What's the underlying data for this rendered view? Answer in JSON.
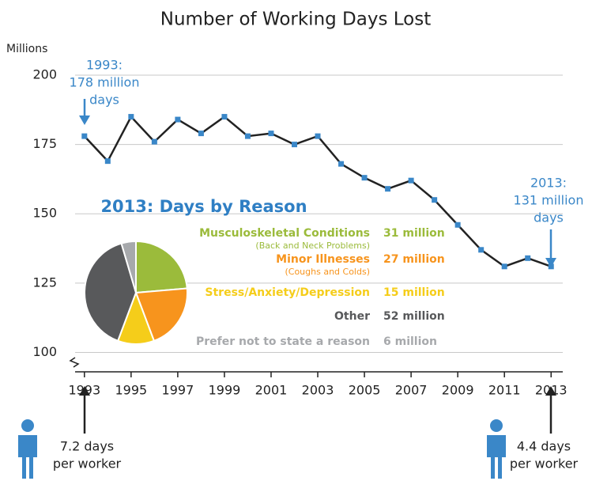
{
  "chart_data": [
    {
      "type": "line",
      "title": "Number of Working Days Lost",
      "y_label": "Millions",
      "x": [
        1993,
        1994,
        1995,
        1996,
        1997,
        1998,
        1999,
        2000,
        2001,
        2002,
        2003,
        2004,
        2005,
        2006,
        2007,
        2008,
        2009,
        2010,
        2011,
        2012,
        2013
      ],
      "values": [
        178,
        169,
        185,
        176,
        184,
        179,
        185,
        178,
        179,
        175,
        178,
        168,
        163,
        159,
        162,
        155,
        146,
        137,
        131,
        134,
        131
      ],
      "color": "#222222",
      "marker_color": "#3a87c8",
      "xlim": [
        1992.6,
        2013.5
      ],
      "ylim": [
        93,
        200
      ],
      "xticks": [
        1993,
        1995,
        1997,
        1999,
        2001,
        2003,
        2005,
        2007,
        2009,
        2011,
        2013
      ],
      "yticks": [
        100,
        125,
        150,
        175,
        200
      ],
      "grid": true,
      "annotations": [
        {
          "lines": [
            "1993:",
            "178 million",
            "days"
          ],
          "color": "#3a87c8"
        },
        {
          "lines": [
            "2013:",
            "131 million",
            "days"
          ],
          "color": "#3a87c8"
        }
      ],
      "footnotes": [
        {
          "lines": [
            "7.2 days",
            "per worker"
          ]
        },
        {
          "lines": [
            "4.4 days",
            "per worker"
          ]
        }
      ]
    },
    {
      "type": "pie",
      "title": "2013: Days by Reason",
      "title_color": "#2f7fc4",
      "categories": [
        "Musculoskeletal Conditions",
        "Minor Illnesses",
        "Stress/Anxiety/Depression",
        "Other",
        "Prefer not to state a reason"
      ],
      "sublabels": [
        "(Back and Neck Problems)",
        "(Coughs and Colds)",
        null,
        null,
        null
      ],
      "values": [
        31,
        27,
        15,
        52,
        6
      ],
      "value_labels": [
        "31 million",
        "27 million",
        "15 million",
        "52 million",
        "6 million"
      ],
      "colors": [
        "#9bbb3b",
        "#f7941d",
        "#f5cd1a",
        "#58595b",
        "#a7a9ac"
      ]
    }
  ]
}
